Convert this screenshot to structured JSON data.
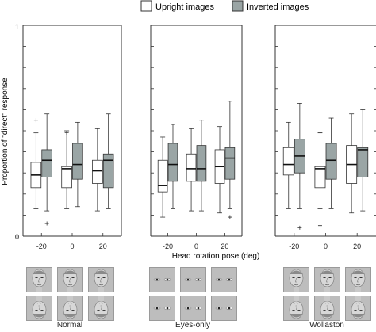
{
  "legend": {
    "upright": {
      "label": "Upright images",
      "color": "#ffffff"
    },
    "inverted": {
      "label": "Inverted images",
      "color": "#9aa5a5"
    }
  },
  "axes": {
    "ylabel": "Proportion of \"direct\" response",
    "xlabel": "Head rotation pose (deg)",
    "ylim": [
      0,
      1
    ],
    "yticks": [
      "0",
      "1"
    ],
    "xticks": [
      "-20",
      "0",
      "20"
    ]
  },
  "panels": [
    {
      "name": "Normal",
      "stimulus_icon": "head-face-icon"
    },
    {
      "name": "Eyes-only",
      "stimulus_icon": "eyes-icon"
    },
    {
      "name": "Wollaston",
      "stimulus_icon": "head-face-icon"
    }
  ],
  "chart_data": {
    "type": "box",
    "categories": [
      "-20",
      "0",
      "20"
    ],
    "xlabel": "Head rotation pose (deg)",
    "ylabel": "Proportion of \"direct\" response",
    "ylim": [
      0,
      1
    ],
    "legend": "top-right",
    "grid": false,
    "panels": [
      {
        "name": "Normal",
        "series": [
          {
            "name": "Upright images",
            "boxes": [
              {
                "wlo": 0.13,
                "q1": 0.23,
                "med": 0.29,
                "q3": 0.35,
                "whi": 0.49,
                "outliers": [
                  0.55
                ]
              },
              {
                "wlo": 0.13,
                "q1": 0.23,
                "med": 0.32,
                "q3": 0.33,
                "whi": 0.5,
                "outliers": [
                  0.49
                ]
              },
              {
                "wlo": 0.12,
                "q1": 0.25,
                "med": 0.31,
                "q3": 0.36,
                "whi": 0.51,
                "outliers": []
              }
            ]
          },
          {
            "name": "Inverted images",
            "boxes": [
              {
                "wlo": 0.12,
                "q1": 0.28,
                "med": 0.36,
                "q3": 0.41,
                "whi": 0.58,
                "outliers": [
                  0.06
                ]
              },
              {
                "wlo": 0.14,
                "q1": 0.27,
                "med": 0.34,
                "q3": 0.44,
                "whi": 0.54,
                "outliers": []
              },
              {
                "wlo": 0.13,
                "q1": 0.23,
                "med": 0.36,
                "q3": 0.39,
                "whi": 0.58,
                "outliers": []
              }
            ]
          }
        ]
      },
      {
        "name": "Eyes-only",
        "series": [
          {
            "name": "Upright images",
            "boxes": [
              {
                "wlo": 0.09,
                "q1": 0.21,
                "med": 0.24,
                "q3": 0.36,
                "whi": 0.47,
                "outliers": []
              },
              {
                "wlo": 0.12,
                "q1": 0.26,
                "med": 0.32,
                "q3": 0.39,
                "whi": 0.51,
                "outliers": []
              },
              {
                "wlo": 0.11,
                "q1": 0.25,
                "med": 0.33,
                "q3": 0.41,
                "whi": 0.52,
                "outliers": []
              }
            ]
          },
          {
            "name": "Inverted images",
            "boxes": [
              {
                "wlo": 0.13,
                "q1": 0.26,
                "med": 0.34,
                "q3": 0.44,
                "whi": 0.53,
                "outliers": []
              },
              {
                "wlo": 0.12,
                "q1": 0.26,
                "med": 0.32,
                "q3": 0.43,
                "whi": 0.55,
                "outliers": []
              },
              {
                "wlo": 0.13,
                "q1": 0.27,
                "med": 0.37,
                "q3": 0.42,
                "whi": 0.64,
                "outliers": [
                  0.09
                ]
              }
            ]
          }
        ]
      },
      {
        "name": "Wollaston",
        "series": [
          {
            "name": "Upright images",
            "boxes": [
              {
                "wlo": 0.13,
                "q1": 0.29,
                "med": 0.34,
                "q3": 0.42,
                "whi": 0.54,
                "outliers": []
              },
              {
                "wlo": 0.13,
                "q1": 0.23,
                "med": 0.32,
                "q3": 0.33,
                "whi": 0.49,
                "outliers": [
                  0.49,
                  0.05
                ]
              },
              {
                "wlo": 0.11,
                "q1": 0.25,
                "med": 0.34,
                "q3": 0.43,
                "whi": 0.58,
                "outliers": []
              }
            ]
          },
          {
            "name": "Inverted images",
            "boxes": [
              {
                "wlo": 0.13,
                "q1": 0.3,
                "med": 0.38,
                "q3": 0.46,
                "whi": 0.63,
                "outliers": [
                  0.04
                ]
              },
              {
                "wlo": 0.13,
                "q1": 0.27,
                "med": 0.36,
                "q3": 0.44,
                "whi": 0.56,
                "outliers": []
              },
              {
                "wlo": 0.12,
                "q1": 0.28,
                "med": 0.41,
                "q3": 0.42,
                "whi": 0.6,
                "outliers": []
              }
            ]
          }
        ]
      }
    ]
  }
}
